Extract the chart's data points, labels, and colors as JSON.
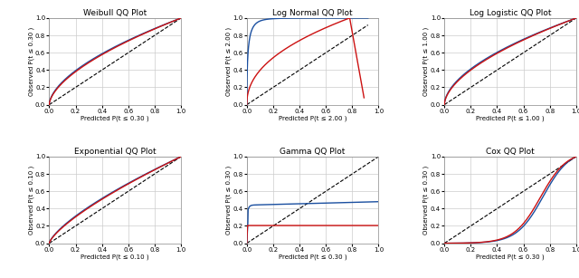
{
  "titles": [
    "Weibull QQ Plot",
    "Log Normal QQ Plot",
    "Log Logistic QQ Plot",
    "Exponential QQ Plot",
    "Gamma QQ Plot",
    "Cox QQ Plot"
  ],
  "xlabels": [
    "Predicted P(t ≤ 0.30 )",
    "Predicted P(t ≤ 2.00 )",
    "Predicted P(t ≤ 1.00 )",
    "Predicted P(t ≤ 0.10 )",
    "Predicted P(t ≤ 0.30 )",
    "Predicted P(t ≤ 0.30 )"
  ],
  "ylabels": [
    "Observed P(t ≤ 0.30 )",
    "Observed P(t ≤ 2.00 )",
    "Observed P(t ≤ 1.00 )",
    "Observed P(t ≤ 0.10 )",
    "Observed P(t ≤ 0.30 )",
    "Observed P(t ≤ 0.30 )"
  ],
  "blue_color": "#1a4fa0",
  "red_color": "#cc1111",
  "grid_color": "#cccccc",
  "bg_color": "#ffffff",
  "title_fontsize": 6.5,
  "label_fontsize": 5.0,
  "tick_fontsize": 5.0,
  "linewidth": 1.0,
  "diag_linewidth": 0.8
}
